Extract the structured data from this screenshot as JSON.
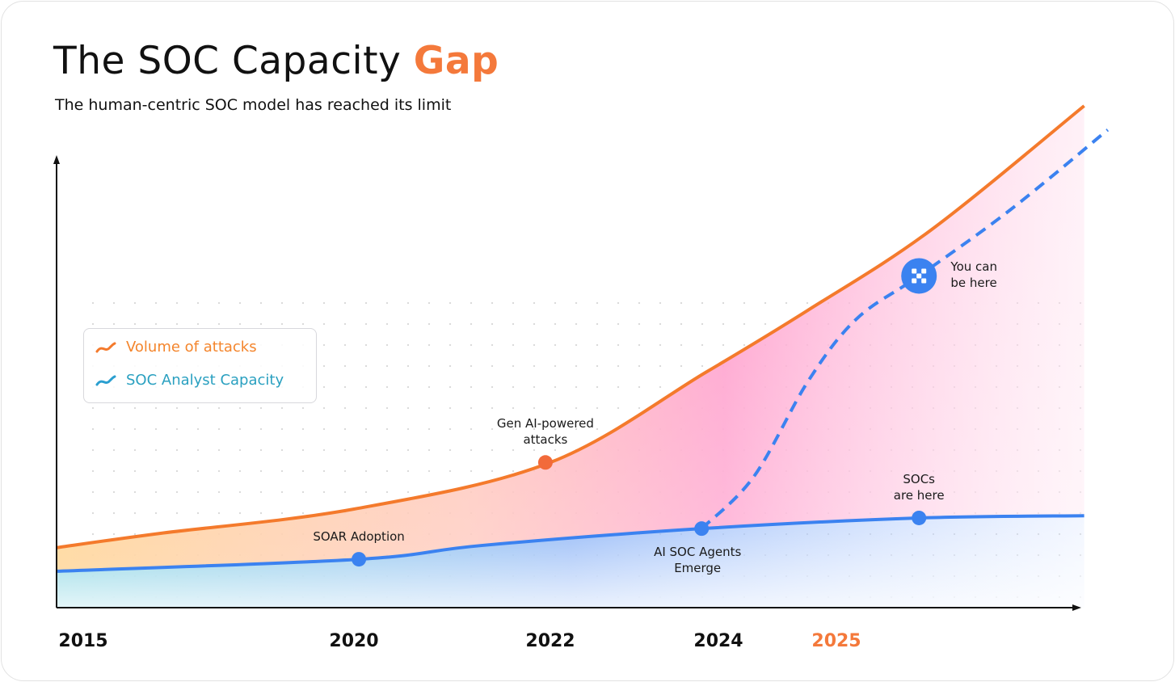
{
  "title": {
    "main": "The SOC Capacity",
    "accent": "Gap"
  },
  "subtitle": "The human-centric SOC model has reached its limit",
  "colors": {
    "attacks": "#f47a2c",
    "capacity": "#3b82f0",
    "accent": "#f4793b",
    "gap_fill": "#ff8fc0"
  },
  "chart_data": {
    "type": "line",
    "title": "The SOC Capacity Gap",
    "xlabel": "",
    "ylabel": "",
    "x_ticks": [
      {
        "label": "2015",
        "value": 2015,
        "highlight": false
      },
      {
        "label": "2020",
        "value": 2020,
        "highlight": false
      },
      {
        "label": "2022",
        "value": 2022,
        "highlight": false
      },
      {
        "label": "2024",
        "value": 2024,
        "highlight": false
      },
      {
        "label": "2025",
        "value": 2025,
        "highlight": true
      }
    ],
    "y_ticks": [],
    "ylim": [
      0,
      115
    ],
    "grid": "dotted",
    "legend": {
      "position": "left",
      "entries": [
        {
          "label": "Volume of attacks",
          "icon": "trend-line-orange-icon"
        },
        {
          "label": "SOC Analyst Capacity",
          "icon": "trend-line-blue-icon"
        }
      ]
    },
    "series": [
      {
        "name": "Volume of attacks",
        "style": "solid",
        "color": "#f47a2c",
        "points": [
          [
            2014.5,
            13.5
          ],
          [
            2016.4,
            16.7
          ],
          [
            2020.0,
            22.2
          ],
          [
            2022.0,
            32.7
          ],
          [
            2023.85,
            53
          ],
          [
            2024.76,
            67
          ],
          [
            2025.8,
            85
          ],
          [
            2027.1,
            113
          ]
        ]
      },
      {
        "name": "SOC Analyst Capacity",
        "style": "solid",
        "color": "#3b82f0",
        "points": [
          [
            2014.5,
            8.2
          ],
          [
            2020.05,
            10.9
          ],
          [
            2021.3,
            14
          ],
          [
            2023.8,
            17.8
          ],
          [
            2025.7,
            20.2
          ],
          [
            2027.1,
            20.7
          ]
        ]
      },
      {
        "style": "dashed",
        "color": "#3b82f0",
        "points": [
          [
            2023.8,
            17.8
          ],
          [
            2024.3,
            29.5
          ],
          [
            2024.76,
            51
          ],
          [
            2025.17,
            65
          ],
          [
            2025.7,
            74.7
          ],
          [
            2026.47,
            89.5
          ],
          [
            2027.3,
            107.6
          ]
        ]
      }
    ],
    "annotations": [
      {
        "label": [
          "SOAR Adoption"
        ],
        "x": 2020.05,
        "y": 10.9,
        "series": "SOC Analyst Capacity",
        "text_pos": "above"
      },
      {
        "label": [
          "Gen AI-powered",
          "attacks"
        ],
        "x": 2021.95,
        "y": 32.7,
        "series": "Volume of attacks",
        "text_pos": "above"
      },
      {
        "label": [
          "AI SOC Agents",
          "Emerge"
        ],
        "x": 2023.8,
        "y": 17.8,
        "series": "SOC Analyst Capacity",
        "text_pos": "below"
      },
      {
        "label": [
          "SOCs",
          "are here"
        ],
        "x": 2025.7,
        "y": 20.2,
        "series": "SOC Analyst Capacity",
        "text_pos": "above"
      },
      {
        "label": [
          "You can",
          "be here"
        ],
        "x": 2025.7,
        "y": 74.7,
        "series": "dashed",
        "text_pos": "right",
        "icon": "brand-x-logo-icon"
      }
    ]
  }
}
